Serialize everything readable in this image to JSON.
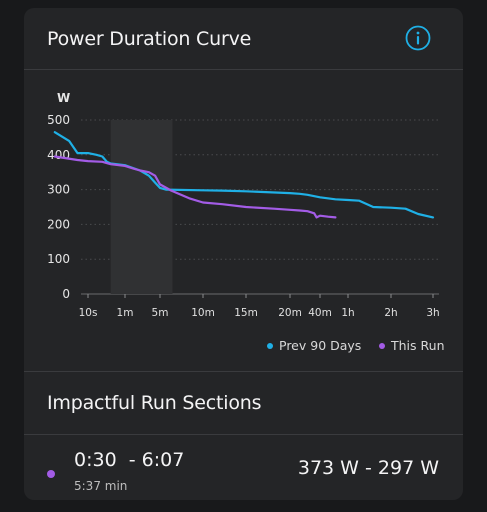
{
  "card": {
    "title": "Power Duration Curve",
    "info_icon": "info-circle-icon"
  },
  "legend": {
    "prev": {
      "label": "Prev 90 Days",
      "color": "#1fb0e6"
    },
    "this": {
      "label": "This Run",
      "color": "#a35ce6"
    }
  },
  "chart_data": {
    "type": "line",
    "ylabel": "W",
    "ylim": [
      0,
      500
    ],
    "y_ticks": [
      0,
      100,
      200,
      300,
      400,
      500
    ],
    "x_ticks": [
      "10s",
      "1m",
      "5m",
      "10m",
      "15m",
      "20m",
      "40m",
      "1h",
      "2h",
      "3h"
    ],
    "highlight_range": [
      "0:30",
      "6:07"
    ],
    "grid": true,
    "series": [
      {
        "name": "Prev 90 Days",
        "color": "#1fb0e6",
        "points": [
          [
            "2s",
            465
          ],
          [
            "4s",
            440
          ],
          [
            "6s",
            405
          ],
          [
            "10s",
            405
          ],
          [
            "15s",
            400
          ],
          [
            "20s",
            395
          ],
          [
            "25s",
            380
          ],
          [
            "30s",
            375
          ],
          [
            "1m",
            370
          ],
          [
            "2m",
            355
          ],
          [
            "3m",
            340
          ],
          [
            "4m",
            320
          ],
          [
            "5m",
            305
          ],
          [
            "5.5m",
            300
          ],
          [
            "10m",
            298
          ],
          [
            "12m",
            297
          ],
          [
            "15m",
            295
          ],
          [
            "20m",
            290
          ],
          [
            "25m",
            288
          ],
          [
            "30m",
            285
          ],
          [
            "40m",
            278
          ],
          [
            "50m",
            272
          ],
          [
            "1h",
            270
          ],
          [
            "1.2h",
            268
          ],
          [
            "1.5h",
            250
          ],
          [
            "2h",
            248
          ],
          [
            "2.3h",
            245
          ],
          [
            "2.6h",
            230
          ],
          [
            "3h",
            220
          ]
        ]
      },
      {
        "name": "This Run",
        "color": "#a35ce6",
        "points": [
          [
            "2s",
            395
          ],
          [
            "6s",
            385
          ],
          [
            "10s",
            382
          ],
          [
            "20s",
            380
          ],
          [
            "30s",
            373
          ],
          [
            "1m",
            368
          ],
          [
            "1.5m",
            360
          ],
          [
            "2m",
            355
          ],
          [
            "3m",
            350
          ],
          [
            "4m",
            340
          ],
          [
            "5m",
            315
          ],
          [
            "6m",
            297
          ],
          [
            "8m",
            275
          ],
          [
            "10m",
            263
          ],
          [
            "12m",
            258
          ],
          [
            "15m",
            250
          ],
          [
            "18m",
            245
          ],
          [
            "20m",
            242
          ],
          [
            "25m",
            240
          ],
          [
            "30m",
            238
          ],
          [
            "35m",
            232
          ],
          [
            "37m",
            220
          ],
          [
            "40m",
            225
          ],
          [
            "45m",
            222
          ],
          [
            "50m",
            220
          ]
        ]
      }
    ]
  },
  "section": {
    "title": "Impactful Run Sections",
    "items": [
      {
        "time_range": "0:30  - 6:07",
        "duration": "5:37 min",
        "watts": "373 W - 297 W",
        "color": "#a35ce6"
      }
    ]
  }
}
